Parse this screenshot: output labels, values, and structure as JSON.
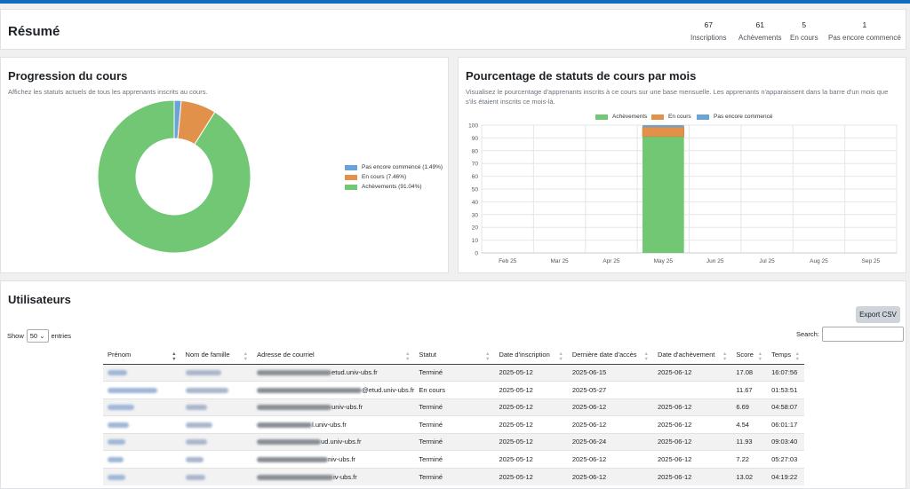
{
  "summary": {
    "title": "Résumé",
    "stats": [
      {
        "value": "67",
        "label": "Inscriptions"
      },
      {
        "value": "61",
        "label": "Achèvements"
      },
      {
        "value": "5",
        "label": "En cours"
      },
      {
        "value": "1",
        "label": "Pas encore commencé"
      }
    ]
  },
  "progress": {
    "title": "Progression du cours",
    "description": "Affichez les statuts actuels de tous les apprenants inscrits au cours."
  },
  "monthly": {
    "title": "Pourcentage de statuts de cours par mois",
    "description": "Visualisez le pourcentage d'apprenants inscrits à ce cours sur une base mensuelle. Les apprenants n'apparaissent dans la barre d'un mois que s'ils étaient inscrits ce mois-là."
  },
  "colors": {
    "completed": "#71c774",
    "in_progress": "#e1914a",
    "not_started": "#6aa3d5"
  },
  "chart_data": [
    {
      "type": "pie",
      "labels": [
        "Pas encore commencé (1.49%)",
        "En cours (7.46%)",
        "Achèvements (91.04%)"
      ],
      "values": [
        1.49,
        7.46,
        91.04
      ],
      "colors": [
        "#6aa3d5",
        "#e1914a",
        "#71c774"
      ],
      "legend": "right"
    },
    {
      "type": "bar",
      "stacked": true,
      "categories": [
        "Feb 25",
        "Mar 25",
        "Apr 25",
        "May 25",
        "Jun 25",
        "Jul 25",
        "Aug 25",
        "Sep 25"
      ],
      "series": [
        {
          "name": "Achèvements",
          "color": "#71c774",
          "values": [
            0,
            0,
            0,
            91,
            0,
            0,
            0,
            0
          ]
        },
        {
          "name": "En cours",
          "color": "#e1914a",
          "values": [
            0,
            0,
            0,
            7.5,
            0,
            0,
            0,
            0
          ]
        },
        {
          "name": "Pas encore commencé",
          "color": "#6aa3d5",
          "values": [
            0,
            0,
            0,
            1.5,
            0,
            0,
            0,
            0
          ]
        }
      ],
      "yticks": [
        "0",
        "10",
        "20",
        "30",
        "40",
        "50",
        "60",
        "70",
        "80",
        "90",
        "100"
      ],
      "ylim": [
        0,
        100
      ],
      "legend": "top",
      "grid": true
    }
  ],
  "users": {
    "title": "Utilisateurs",
    "export_label": "Export CSV",
    "show_label": "Show",
    "show_value": "50",
    "entries_label": "entries",
    "search_label": "Search:",
    "columns": [
      "Prénom",
      "Nom de famille",
      "Adresse de courriel",
      "Statut",
      "Date d'inscription",
      "Dernière date d'accès",
      "Date d'achèvement",
      "Score",
      "Temps"
    ],
    "rows": [
      {
        "email_suffix": "etud.univ-ubs.fr",
        "status": "Terminé",
        "enrolled": "2025-05-12",
        "last_access": "2025-06-15",
        "completed": "2025-06-12",
        "score": "17.08",
        "time": "16:07:56"
      },
      {
        "email_suffix": "@etud.univ-ubs.fr",
        "status": "En cours",
        "enrolled": "2025-05-12",
        "last_access": "2025-05-27",
        "completed": "",
        "score": "11.67",
        "time": "01:53:51"
      },
      {
        "email_suffix": "univ-ubs.fr",
        "status": "Terminé",
        "enrolled": "2025-05-12",
        "last_access": "2025-06-12",
        "completed": "2025-06-12",
        "score": "6.69",
        "time": "04:58:07"
      },
      {
        "email_suffix": "l.univ-ubs.fr",
        "status": "Terminé",
        "enrolled": "2025-05-12",
        "last_access": "2025-06-12",
        "completed": "2025-06-12",
        "score": "4.54",
        "time": "06:01:17"
      },
      {
        "email_suffix": "ud.univ-ubs.fr",
        "status": "Terminé",
        "enrolled": "2025-05-12",
        "last_access": "2025-06-24",
        "completed": "2025-06-12",
        "score": "11.93",
        "time": "09:03:40"
      },
      {
        "email_suffix": "niv-ubs.fr",
        "status": "Terminé",
        "enrolled": "2025-05-12",
        "last_access": "2025-06-12",
        "completed": "2025-06-12",
        "score": "7.22",
        "time": "05:27:03"
      },
      {
        "email_suffix": "iv-ubs.fr",
        "status": "Terminé",
        "enrolled": "2025-05-12",
        "last_access": "2025-06-12",
        "completed": "2025-06-12",
        "score": "13.02",
        "time": "04:19:22"
      }
    ]
  }
}
